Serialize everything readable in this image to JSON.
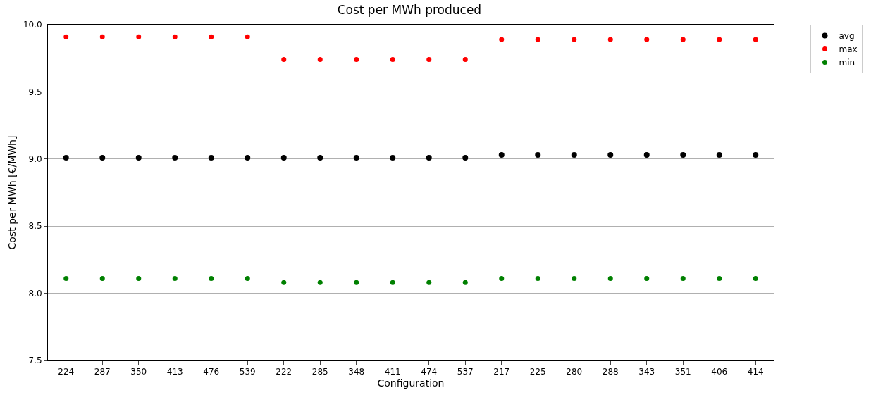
{
  "chart_data": {
    "type": "scatter",
    "title": "Cost per MWh produced",
    "xlabel": "Configuration",
    "ylabel": "Cost per MWh [€/MWh]",
    "categories": [
      "224",
      "287",
      "350",
      "413",
      "476",
      "539",
      "222",
      "285",
      "348",
      "411",
      "474",
      "537",
      "217",
      "225",
      "280",
      "288",
      "343",
      "351",
      "406",
      "414"
    ],
    "series": [
      {
        "name": "avg",
        "color": "#000000",
        "values": [
          9.01,
          9.01,
          9.01,
          9.01,
          9.01,
          9.01,
          9.01,
          9.01,
          9.01,
          9.01,
          9.01,
          9.01,
          9.03,
          9.03,
          9.03,
          9.03,
          9.03,
          9.03,
          9.03,
          9.03
        ]
      },
      {
        "name": "max",
        "color": "#ff0000",
        "values": [
          9.91,
          9.91,
          9.91,
          9.91,
          9.91,
          9.91,
          9.74,
          9.74,
          9.74,
          9.74,
          9.74,
          9.74,
          9.89,
          9.89,
          9.89,
          9.89,
          9.89,
          9.89,
          9.89,
          9.89
        ]
      },
      {
        "name": "min",
        "color": "#008000",
        "values": [
          8.11,
          8.11,
          8.11,
          8.11,
          8.11,
          8.11,
          8.08,
          8.08,
          8.08,
          8.08,
          8.08,
          8.08,
          8.11,
          8.11,
          8.11,
          8.11,
          8.11,
          8.11,
          8.11,
          8.11
        ]
      }
    ],
    "ylim": [
      7.5,
      10.0
    ],
    "yticks": [
      {
        "value": 7.5,
        "label": "7.5"
      },
      {
        "value": 8.0,
        "label": "8.0"
      },
      {
        "value": 8.5,
        "label": "8.5"
      },
      {
        "value": 9.0,
        "label": "9.0"
      },
      {
        "value": 9.5,
        "label": "9.5"
      },
      {
        "value": 10.0,
        "label": "10.0"
      }
    ],
    "grid": "y",
    "legend": "top right",
    "marker": "circle"
  }
}
